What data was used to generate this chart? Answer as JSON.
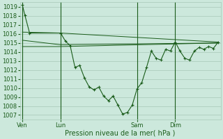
{
  "background_color": "#cce8dc",
  "grid_color": "#a8c8b8",
  "line_color": "#1a5c1a",
  "marker_color": "#1a5c1a",
  "xlabel": "Pression niveau de la mer( hPa )",
  "ylim": [
    1006.5,
    1019.5
  ],
  "yticks": [
    1007,
    1008,
    1009,
    1010,
    1011,
    1012,
    1013,
    1014,
    1015,
    1016,
    1017,
    1018,
    1019
  ],
  "xtick_labels": [
    "Ven",
    "Lun",
    "Sam",
    "Dim"
  ],
  "xtick_positions": [
    0,
    16,
    48,
    64
  ],
  "xlim": [
    -1,
    83
  ],
  "vline_positions": [
    0,
    16,
    48,
    64
  ],
  "series1_x": [
    0,
    1,
    3,
    16,
    18,
    20,
    22,
    24,
    26,
    28,
    30,
    32,
    34,
    36,
    38,
    40,
    42,
    44,
    46,
    48,
    50,
    52,
    54,
    56,
    58,
    60,
    62,
    64,
    66,
    68,
    70,
    72,
    74,
    76,
    78,
    80,
    82
  ],
  "series1_y": [
    1019.2,
    1018.1,
    1016.1,
    1016.1,
    1015.2,
    1014.7,
    1012.3,
    1012.5,
    1011.1,
    1010.1,
    1009.8,
    1010.1,
    1009.1,
    1008.6,
    1009.1,
    1008.1,
    1007.1,
    1007.3,
    1008.1,
    1009.9,
    1010.6,
    1012.3,
    1014.1,
    1013.3,
    1013.1,
    1014.3,
    1014.1,
    1015.1,
    1014.1,
    1013.3,
    1013.1,
    1014.1,
    1014.5,
    1014.3,
    1014.6,
    1014.4,
    1015.1
  ],
  "series2_x": [
    0,
    16,
    82
  ],
  "series2_y": [
    1016.2,
    1016.1,
    1015.1
  ],
  "series3_x": [
    0,
    16,
    82
  ],
  "series3_y": [
    1015.3,
    1014.8,
    1015.0
  ],
  "series4_x": [
    0,
    16,
    82
  ],
  "series4_y": [
    1014.6,
    1014.6,
    1015.0
  ],
  "xlabel_fontsize": 7,
  "tick_fontsize": 6
}
